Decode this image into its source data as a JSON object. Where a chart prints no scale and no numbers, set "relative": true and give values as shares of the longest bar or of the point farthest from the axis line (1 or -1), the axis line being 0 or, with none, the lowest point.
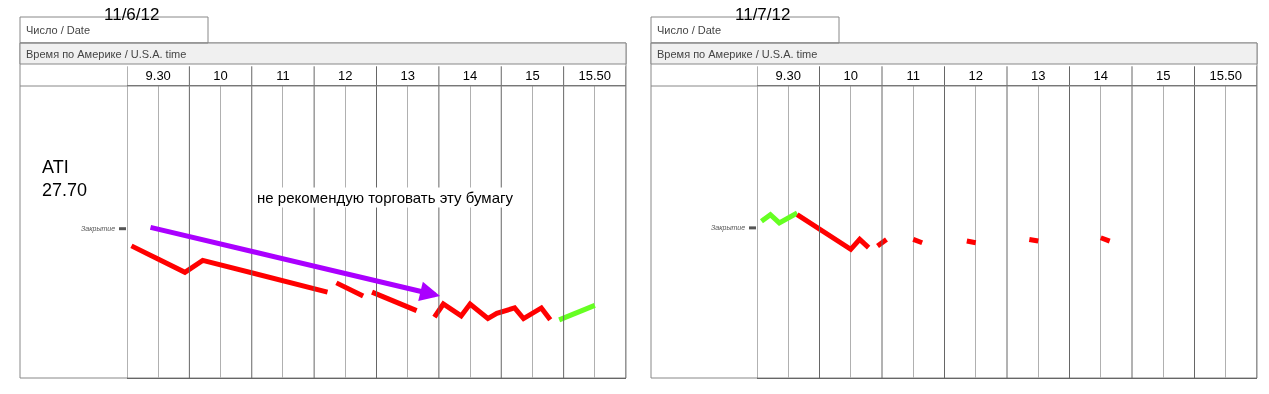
{
  "chart_data": [
    {
      "type": "line",
      "relative": true,
      "title": "11/6/12",
      "subtitle": "Время по Америке / U.S.A. time",
      "annotations": [
        "Число / Date",
        "ATI\n27.70",
        "не рекомендую торговать эту бумагу"
      ],
      "categories": [
        null,
        null,
        null,
        "9.30",
        null,
        null,
        null,
        null,
        null,
        null,
        "10",
        null,
        null,
        null,
        null,
        null,
        null,
        "11",
        null,
        null,
        null,
        null,
        null,
        null,
        "12",
        null,
        null,
        null,
        null,
        null,
        null,
        "13",
        null,
        null,
        null,
        null,
        null,
        null,
        "14",
        null,
        null,
        null,
        null,
        null,
        null,
        "15",
        null,
        null,
        null,
        null,
        null,
        null,
        "15.50",
        null,
        null,
        null
      ],
      "grid": "x",
      "marker": "none",
      "line_style": "solid",
      "ref_lines": [
        {
          "axis": "y",
          "value": 1.13,
          "label": "Закрытие",
          "color": "#555555"
        }
      ],
      "series": [
        {
          "color": "#ff0000",
          "values": [
            1.0,
            null,
            null,
            null,
            null,
            null,
            0.8,
            null,
            0.89,
            null,
            null,
            null,
            null,
            null,
            null,
            null,
            null,
            null,
            null,
            null,
            null,
            null,
            0.65,
            null,
            null,
            null,
            null,
            null,
            null,
            null,
            null,
            null,
            null,
            null,
            null,
            null,
            null,
            null,
            null,
            null,
            null,
            null,
            null,
            null,
            null,
            null,
            null,
            null,
            null,
            null,
            null,
            null,
            null,
            null,
            null,
            null
          ]
        },
        {
          "color": "#ff0000",
          "values": [
            null,
            null,
            null,
            null,
            null,
            null,
            null,
            null,
            null,
            null,
            null,
            null,
            null,
            null,
            null,
            null,
            null,
            null,
            null,
            null,
            null,
            null,
            null,
            0.72,
            null,
            null,
            0.62,
            null,
            null,
            null,
            null,
            null,
            null,
            null,
            null,
            null,
            null,
            null,
            null,
            null,
            null,
            null,
            null,
            null,
            null,
            null,
            null,
            null,
            null,
            null,
            null,
            null,
            null,
            null,
            null,
            null
          ]
        },
        {
          "color": "#ff0000",
          "values": [
            null,
            null,
            null,
            null,
            null,
            null,
            null,
            null,
            null,
            null,
            null,
            null,
            null,
            null,
            null,
            null,
            null,
            null,
            null,
            null,
            null,
            null,
            null,
            null,
            null,
            null,
            null,
            0.65,
            null,
            null,
            null,
            null,
            0.51,
            null,
            null,
            null,
            null,
            null,
            null,
            null,
            null,
            null,
            null,
            null,
            null,
            null,
            null,
            null,
            null,
            null,
            null,
            null,
            null,
            null,
            null,
            null
          ]
        },
        {
          "color": "#ff0000",
          "values": [
            null,
            null,
            null,
            null,
            null,
            null,
            null,
            null,
            null,
            null,
            null,
            null,
            null,
            null,
            null,
            null,
            null,
            null,
            null,
            null,
            null,
            null,
            null,
            null,
            null,
            null,
            null,
            null,
            null,
            null,
            null,
            null,
            null,
            null,
            0.46,
            0.56,
            null,
            0.47,
            0.56,
            null,
            0.45,
            0.49,
            null,
            0.53,
            0.45,
            null,
            0.53,
            0.44,
            null,
            null,
            null,
            null,
            null,
            null,
            null,
            null
          ]
        },
        {
          "color": "#66ff22",
          "values": [
            null,
            null,
            null,
            null,
            null,
            null,
            null,
            null,
            null,
            null,
            null,
            null,
            null,
            null,
            null,
            null,
            null,
            null,
            null,
            null,
            null,
            null,
            null,
            null,
            null,
            null,
            null,
            null,
            null,
            null,
            null,
            null,
            null,
            null,
            null,
            null,
            null,
            null,
            null,
            null,
            null,
            null,
            null,
            null,
            null,
            null,
            null,
            null,
            0.44,
            null,
            null,
            null,
            0.55,
            null,
            null,
            null
          ]
        }
      ]
    },
    {
      "type": "line",
      "relative": true,
      "title": "11/7/12",
      "subtitle": "Время по Америке / U.S.A. time",
      "annotations": [
        "Число / Date"
      ],
      "categories": [
        null,
        null,
        null,
        "9.30",
        null,
        null,
        null,
        null,
        null,
        null,
        "10",
        null,
        null,
        null,
        null,
        null,
        null,
        "11",
        null,
        null,
        null,
        null,
        null,
        null,
        "12",
        null,
        null,
        null,
        null,
        null,
        null,
        "13",
        null,
        null,
        null,
        null,
        null,
        null,
        "14",
        null,
        null,
        null,
        null,
        null,
        null,
        "15",
        null,
        null,
        null,
        null,
        null,
        null,
        "15.50",
        null,
        null,
        null
      ],
      "grid": "x",
      "marker": "none",
      "line_style": "solid",
      "ref_lines": [
        {
          "axis": "y",
          "value": 0.91,
          "label": "Закрытие",
          "color": "#555555"
        }
      ],
      "series": [
        {
          "color": "#66ff22",
          "values": [
            0.95,
            0.99,
            0.94,
            null,
            1.0,
            null,
            null,
            null,
            null,
            null,
            null,
            null,
            null,
            null,
            null,
            null,
            null,
            null,
            null,
            null,
            null,
            null,
            null,
            null,
            null,
            null,
            null,
            null,
            null,
            null,
            null,
            null,
            null,
            null,
            null,
            null,
            null,
            null,
            null,
            null,
            null,
            null,
            null,
            null,
            null,
            null,
            null,
            null,
            null,
            null,
            null,
            null,
            null,
            null,
            null,
            null
          ]
        },
        {
          "color": "#ff0000",
          "values": [
            null,
            null,
            null,
            null,
            0.99,
            null,
            null,
            null,
            null,
            null,
            0.78,
            0.84,
            0.79,
            null,
            null,
            null,
            null,
            null,
            null,
            null,
            null,
            null,
            null,
            null,
            null,
            null,
            null,
            null,
            null,
            null,
            null,
            null,
            null,
            null,
            null,
            null,
            null,
            null,
            null,
            null,
            null,
            null,
            null,
            null,
            null,
            null,
            null,
            null,
            null,
            null,
            null,
            null,
            null,
            null,
            null,
            null
          ]
        },
        {
          "color": "#ff0000",
          "values": [
            null,
            null,
            null,
            null,
            null,
            null,
            null,
            null,
            null,
            null,
            null,
            null,
            null,
            0.8,
            0.84,
            null,
            null,
            null,
            null,
            null,
            null,
            null,
            null,
            null,
            null,
            null,
            null,
            null,
            null,
            null,
            null,
            null,
            null,
            null,
            null,
            null,
            null,
            null,
            null,
            null,
            null,
            null,
            null,
            null,
            null,
            null,
            null,
            null,
            null,
            null,
            null,
            null,
            null,
            null,
            null,
            null
          ]
        },
        {
          "color": "#ff0000",
          "values": [
            null,
            null,
            null,
            null,
            null,
            null,
            null,
            null,
            null,
            null,
            null,
            null,
            null,
            null,
            null,
            null,
            null,
            0.84,
            0.82,
            null,
            null,
            null,
            null,
            null,
            null,
            null,
            null,
            null,
            null,
            null,
            null,
            null,
            null,
            null,
            null,
            null,
            null,
            null,
            null,
            null,
            null,
            null,
            null,
            null,
            null,
            null,
            null,
            null,
            null,
            null,
            null,
            null,
            null,
            null,
            null,
            null
          ]
        },
        {
          "color": "#ff0000",
          "values": [
            null,
            null,
            null,
            null,
            null,
            null,
            null,
            null,
            null,
            null,
            null,
            null,
            null,
            null,
            null,
            null,
            null,
            null,
            null,
            null,
            null,
            null,
            null,
            0.83,
            0.82,
            null,
            null,
            null,
            null,
            null,
            null,
            null,
            null,
            null,
            null,
            null,
            null,
            null,
            null,
            null,
            null,
            null,
            null,
            null,
            null,
            null,
            null,
            null,
            null,
            null,
            null,
            null,
            null,
            null,
            null,
            null
          ]
        },
        {
          "color": "#ff0000",
          "values": [
            null,
            null,
            null,
            null,
            null,
            null,
            null,
            null,
            null,
            null,
            null,
            null,
            null,
            null,
            null,
            null,
            null,
            null,
            null,
            null,
            null,
            null,
            null,
            null,
            null,
            null,
            null,
            null,
            null,
            null,
            0.84,
            0.83,
            null,
            null,
            null,
            null,
            null,
            null,
            null,
            null,
            null,
            null,
            null,
            null,
            null,
            null,
            null,
            null,
            null,
            null,
            null,
            null,
            null,
            null,
            null,
            null
          ]
        },
        {
          "color": "#ff0000",
          "values": [
            null,
            null,
            null,
            null,
            null,
            null,
            null,
            null,
            null,
            null,
            null,
            null,
            null,
            null,
            null,
            null,
            null,
            null,
            null,
            null,
            null,
            null,
            null,
            null,
            null,
            null,
            null,
            null,
            null,
            null,
            null,
            null,
            null,
            null,
            null,
            null,
            null,
            null,
            0.85,
            0.83,
            null,
            null,
            null,
            null,
            null,
            null,
            null,
            null,
            null,
            null,
            null,
            null,
            null,
            null,
            null,
            null
          ]
        }
      ]
    }
  ]
}
